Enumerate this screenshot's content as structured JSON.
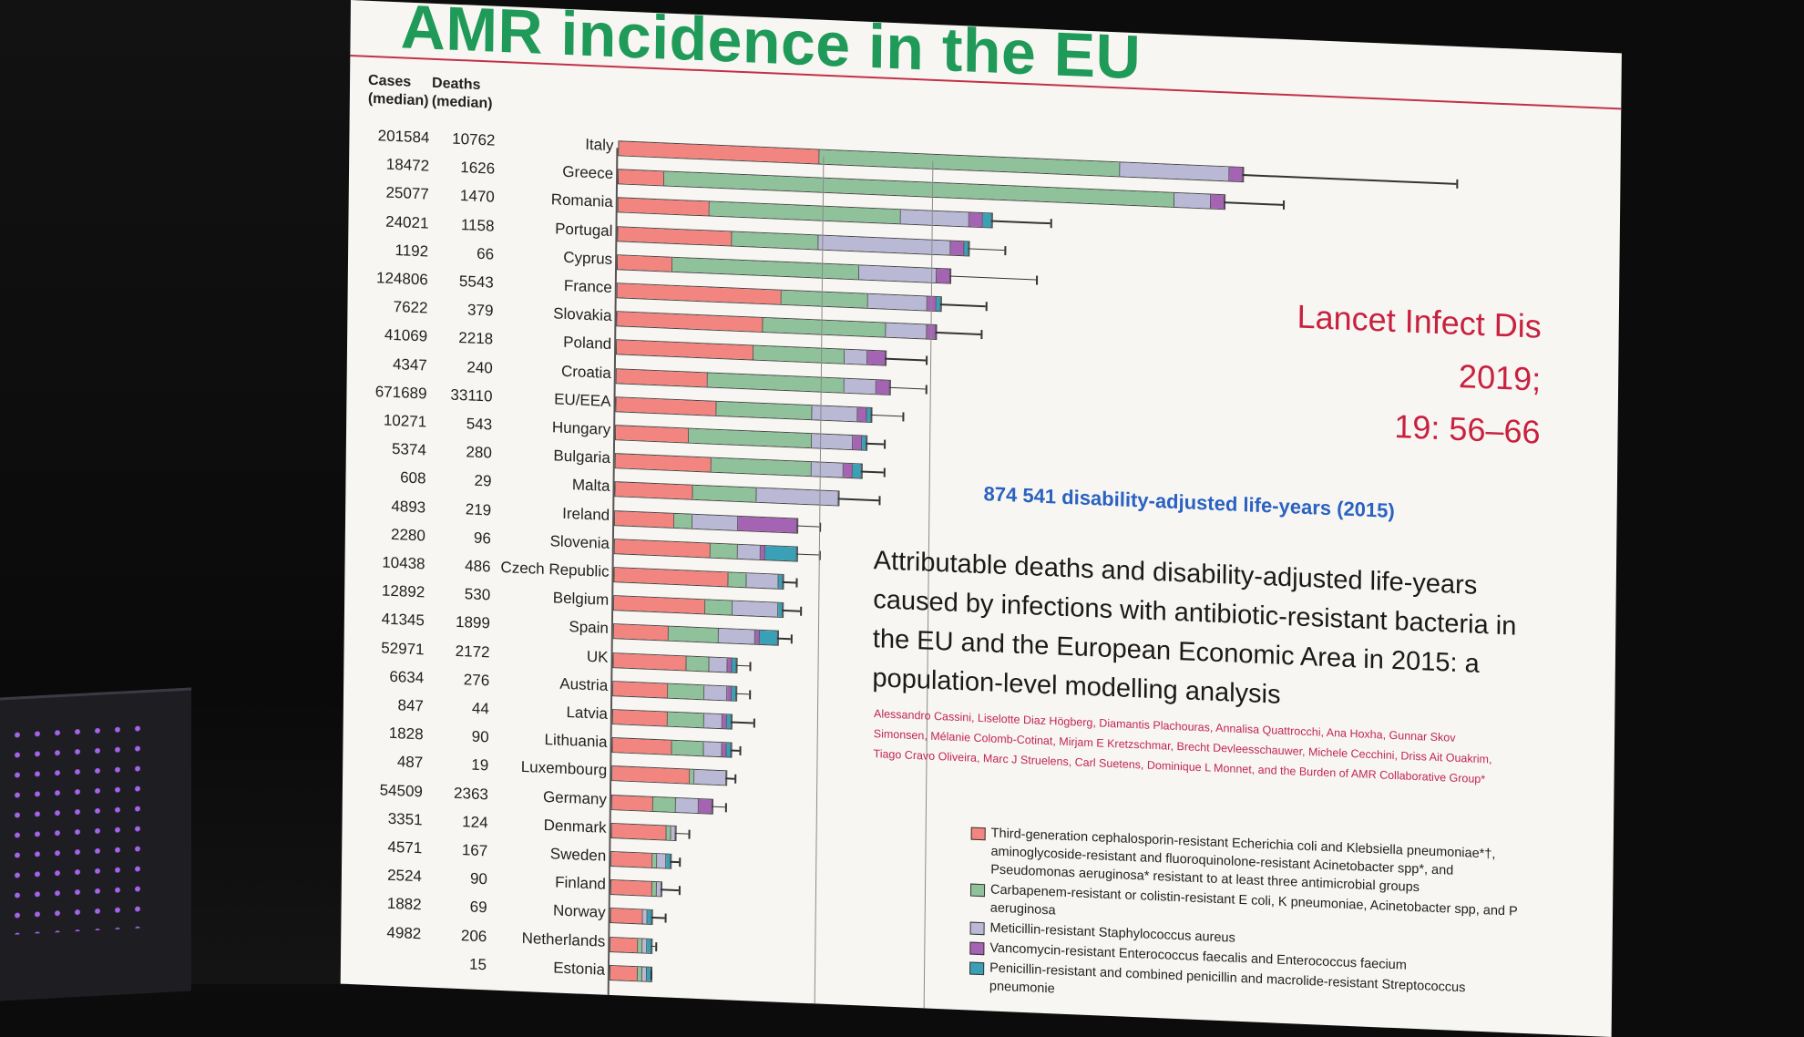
{
  "slide": {
    "title": "AMR incidence in the EU",
    "cases_header": "Cases\n(median)",
    "deaths_header": "Deaths\n(median)",
    "citation_line1": "Lancet Infect Dis 2019;",
    "citation_line2": "19: 56–66",
    "dalys_note": "874 541 disability-adjusted life-years (2015)",
    "paper_title": "Attributable deaths and disability-adjusted life-years caused by infections with antibiotic-resistant bacteria in the EU and the European Economic Area in 2015: a population-level modelling analysis",
    "authors": "Alessandro Cassini, Liselotte Diaz Högberg, Diamantis Plachouras, Annalisa Quattrocchi, Ana Hoxha, Gunnar Skov Simonsen, Mélanie Colomb-Cotinat, Mirjam E Kretzschmar, Brecht Devleesschauwer, Michele Cecchini, Driss Ait Ouakrim, Tiago Cravo Oliveira, Marc J Struelens, Carl Suetens, Dominique L Monnet, and the Burden of AMR Collaborative Group*"
  },
  "colors": {
    "ceph": "#f2857f",
    "carb": "#8fc29a",
    "mrsa": "#b9b9d6",
    "vre": "#a563b3",
    "pen": "#3aa0b6",
    "title_green": "#1f9a58",
    "citation_red": "#c8213f",
    "dalys_blue": "#2a62c2"
  },
  "legend": [
    {
      "key": "ceph",
      "label": "Third-generation cephalosporin-resistant Echerichia coli and Klebsiella pneumoniae*†, aminoglycoside-resistant and fluoroquinolone-resistant Acinetobacter spp*, and Pseudomonas aeruginosa* resistant to at least three antimicrobial groups"
    },
    {
      "key": "carb",
      "label": "Carbapenem-resistant or colistin-resistant E coli, K pneumoniae, Acinetobacter spp, and P aeruginosa"
    },
    {
      "key": "mrsa",
      "label": "Meticillin-resistant Staphylococcus aureus"
    },
    {
      "key": "vre",
      "label": "Vancomycin-resistant Enterococcus faecalis and Enterococcus faecium"
    },
    {
      "key": "pen",
      "label": "Penicillin-resistant and combined penicillin and macrolide-resistant Streptococcus pneumonie"
    }
  ],
  "chart_data": {
    "type": "bar",
    "orientation": "horizontal",
    "stacked": true,
    "series_names": [
      "ceph",
      "carb",
      "mrsa",
      "vre",
      "pen"
    ],
    "rows": [
      {
        "country": "Italy",
        "cases": "201584",
        "deaths": "10762",
        "ceph": 44,
        "carb": 66,
        "mrsa": 24,
        "vre": 3,
        "pen": 0,
        "err": 184
      },
      {
        "country": "Greece",
        "cases": "18472",
        "deaths": "1626",
        "ceph": 10,
        "carb": 112,
        "mrsa": 8,
        "vre": 3,
        "pen": 0,
        "err": 146
      },
      {
        "country": "Romania",
        "cases": "25077",
        "deaths": "1470",
        "ceph": 20,
        "carb": 42,
        "mrsa": 15,
        "vre": 3,
        "pen": 2,
        "err": 95
      },
      {
        "country": "Portugal",
        "cases": "24021",
        "deaths": "1158",
        "ceph": 25,
        "carb": 19,
        "mrsa": 29,
        "vre": 3,
        "pen": 1,
        "err": 85
      },
      {
        "country": "Cyprus",
        "cases": "1192",
        "deaths": "66",
        "ceph": 12,
        "carb": 41,
        "mrsa": 17,
        "vre": 3,
        "pen": 0,
        "err": 92
      },
      {
        "country": "France",
        "cases": "124806",
        "deaths": "5543",
        "ceph": 36,
        "carb": 19,
        "mrsa": 13,
        "vre": 2,
        "pen": 1,
        "err": 81
      },
      {
        "country": "Slovakia",
        "cases": "7622",
        "deaths": "379",
        "ceph": 32,
        "carb": 27,
        "mrsa": 9,
        "vre": 2,
        "pen": 0,
        "err": 80
      },
      {
        "country": "Poland",
        "cases": "41069",
        "deaths": "2218",
        "ceph": 30,
        "carb": 20,
        "mrsa": 5,
        "vre": 4,
        "pen": 0,
        "err": 68
      },
      {
        "country": "Croatia",
        "cases": "4347",
        "deaths": "240",
        "ceph": 20,
        "carb": 30,
        "mrsa": 7,
        "vre": 3,
        "pen": 0,
        "err": 68
      },
      {
        "country": "EU/EEA",
        "cases": "671689",
        "deaths": "33110",
        "ceph": 22,
        "carb": 21,
        "mrsa": 10,
        "vre": 2,
        "pen": 1,
        "err": 63
      },
      {
        "country": "Hungary",
        "cases": "10271",
        "deaths": "543",
        "ceph": 16,
        "carb": 27,
        "mrsa": 9,
        "vre": 2,
        "pen": 1,
        "err": 59
      },
      {
        "country": "Bulgaria",
        "cases": "5374",
        "deaths": "280",
        "ceph": 21,
        "carb": 22,
        "mrsa": 7,
        "vre": 2,
        "pen": 2,
        "err": 59
      },
      {
        "country": "Malta",
        "cases": "608",
        "deaths": "29",
        "ceph": 17,
        "carb": 14,
        "mrsa": 18,
        "vre": 0,
        "pen": 0,
        "err": 58
      },
      {
        "country": "Ireland",
        "cases": "4893",
        "deaths": "219",
        "ceph": 13,
        "carb": 4,
        "mrsa": 10,
        "vre": 13,
        "pen": 0,
        "err": 45
      },
      {
        "country": "Slovenia",
        "cases": "2280",
        "deaths": "96",
        "ceph": 21,
        "carb": 6,
        "mrsa": 5,
        "vre": 1,
        "pen": 7,
        "err": 45
      },
      {
        "country": "Czech Republic",
        "cases": "10438",
        "deaths": "486",
        "ceph": 25,
        "carb": 4,
        "mrsa": 7,
        "vre": 0,
        "pen": 1,
        "err": 40
      },
      {
        "country": "Belgium",
        "cases": "12892",
        "deaths": "530",
        "ceph": 20,
        "carb": 6,
        "mrsa": 10,
        "vre": 0,
        "pen": 1,
        "err": 41
      },
      {
        "country": "Spain",
        "cases": "41345",
        "deaths": "1899",
        "ceph": 12,
        "carb": 11,
        "mrsa": 8,
        "vre": 1,
        "pen": 4,
        "err": 39
      },
      {
        "country": "UK",
        "cases": "52971",
        "deaths": "2172",
        "ceph": 16,
        "carb": 5,
        "mrsa": 4,
        "vre": 1,
        "pen": 1,
        "err": 30
      },
      {
        "country": "Austria",
        "cases": "6634",
        "deaths": "276",
        "ceph": 12,
        "carb": 8,
        "mrsa": 5,
        "vre": 1,
        "pen": 1,
        "err": 30
      },
      {
        "country": "Latvia",
        "cases": "847",
        "deaths": "44",
        "ceph": 12,
        "carb": 8,
        "mrsa": 4,
        "vre": 1,
        "pen": 1,
        "err": 31
      },
      {
        "country": "Lithuania",
        "cases": "1828",
        "deaths": "90",
        "ceph": 13,
        "carb": 7,
        "mrsa": 4,
        "vre": 1,
        "pen": 1,
        "err": 28
      },
      {
        "country": "Luxembourg",
        "cases": "487",
        "deaths": "19",
        "ceph": 17,
        "carb": 1,
        "mrsa": 7,
        "vre": 0,
        "pen": 0,
        "err": 27
      },
      {
        "country": "Germany",
        "cases": "54509",
        "deaths": "2363",
        "ceph": 9,
        "carb": 5,
        "mrsa": 5,
        "vre": 3,
        "pen": 0,
        "err": 25
      },
      {
        "country": "Denmark",
        "cases": "3351",
        "deaths": "124",
        "ceph": 12,
        "carb": 1,
        "mrsa": 1,
        "vre": 0,
        "pen": 0,
        "err": 17
      },
      {
        "country": "Sweden",
        "cases": "4571",
        "deaths": "167",
        "ceph": 9,
        "carb": 1,
        "mrsa": 2,
        "vre": 0,
        "pen": 1,
        "err": 15
      },
      {
        "country": "Finland",
        "cases": "2524",
        "deaths": "90",
        "ceph": 9,
        "carb": 1,
        "mrsa": 1,
        "vre": 0,
        "pen": 0,
        "err": 15
      },
      {
        "country": "Norway",
        "cases": "1882",
        "deaths": "69",
        "ceph": 7,
        "carb": 0,
        "mrsa": 1,
        "vre": 0,
        "pen": 1,
        "err": 12
      },
      {
        "country": "Netherlands",
        "cases": "4982",
        "deaths": "206",
        "ceph": 6,
        "carb": 1,
        "mrsa": 1,
        "vre": 0,
        "pen": 1,
        "err": 10
      },
      {
        "country": "Estonia",
        "cases": "",
        "deaths": "15",
        "ceph": 6,
        "carb": 1,
        "mrsa": 1,
        "vre": 0,
        "pen": 1,
        "err": 9
      }
    ]
  }
}
